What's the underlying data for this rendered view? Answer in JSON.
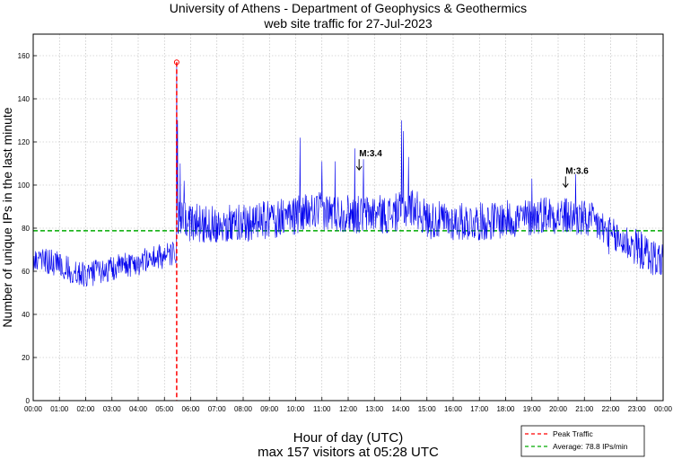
{
  "chart_data": {
    "type": "line",
    "title": [
      "University of Athens - Department of Geophysics & Geothermics",
      "web site traffic for 27-Jul-2023"
    ],
    "xlabel": "Hour of day (UTC)",
    "subtitle": "max 157 visitors at 05:28 UTC",
    "ylabel": "Number of unique IPs in the last minute",
    "xlim": [
      0,
      1440
    ],
    "ylim": [
      0,
      170
    ],
    "x_ticks": [
      "00:00",
      "01:00",
      "02:00",
      "03:00",
      "04:00",
      "05:00",
      "06:00",
      "07:00",
      "08:00",
      "09:00",
      "10:00",
      "11:00",
      "12:00",
      "13:00",
      "14:00",
      "15:00",
      "16:00",
      "17:00",
      "18:00",
      "19:00",
      "20:00",
      "21:00",
      "22:00",
      "23:00",
      "00:00"
    ],
    "y_ticks": [
      0,
      20,
      40,
      60,
      80,
      100,
      120,
      140,
      160
    ],
    "grid": true,
    "series_color": "#0000ee",
    "traffic_profile": {
      "x": [
        0,
        30,
        60,
        90,
        120,
        150,
        180,
        210,
        240,
        270,
        300,
        320,
        327,
        328,
        335,
        350,
        390,
        450,
        510,
        570,
        600,
        630,
        660,
        690,
        720,
        750,
        780,
        810,
        840,
        870,
        900,
        960,
        1020,
        1080,
        1140,
        1170,
        1200,
        1230,
        1260,
        1290,
        1320,
        1350,
        1380,
        1410,
        1439
      ],
      "y": [
        63,
        65,
        63,
        60,
        58,
        60,
        61,
        63,
        64,
        66,
        67,
        68,
        69,
        80,
        84,
        83,
        82,
        82,
        83,
        85,
        86,
        87,
        88,
        87,
        87,
        86,
        87,
        86,
        88,
        90,
        84,
        83,
        83,
        84,
        85,
        87,
        86,
        85,
        84,
        82,
        76,
        74,
        71,
        67,
        65
      ]
    },
    "spikes": [
      {
        "x": 330,
        "y": 130
      },
      {
        "x": 336,
        "y": 110
      },
      {
        "x": 345,
        "y": 102
      },
      {
        "x": 610,
        "y": 122
      },
      {
        "x": 660,
        "y": 111
      },
      {
        "x": 690,
        "y": 111
      },
      {
        "x": 735,
        "y": 117
      },
      {
        "x": 755,
        "y": 112
      },
      {
        "x": 842,
        "y": 130
      },
      {
        "x": 846,
        "y": 125
      },
      {
        "x": 858,
        "y": 113
      },
      {
        "x": 1140,
        "y": 103
      },
      {
        "x": 1240,
        "y": 105
      }
    ],
    "peak": {
      "x": 328,
      "y": 157,
      "color": "#ff0000"
    },
    "average": {
      "value": 78.8,
      "color": "#00aa00"
    },
    "annotations": [
      {
        "label": "M:3.4",
        "x": 745,
        "y": 107
      },
      {
        "label": "M:3.6",
        "x": 1217,
        "y": 99
      }
    ],
    "legend": {
      "position": "bottom-right",
      "entries": [
        {
          "label": "Peak Traffic",
          "color": "#ff0000",
          "style": "dashed"
        },
        {
          "label": "Average: 78.8 IPs/min",
          "color": "#00aa00",
          "style": "dashed"
        }
      ]
    }
  }
}
